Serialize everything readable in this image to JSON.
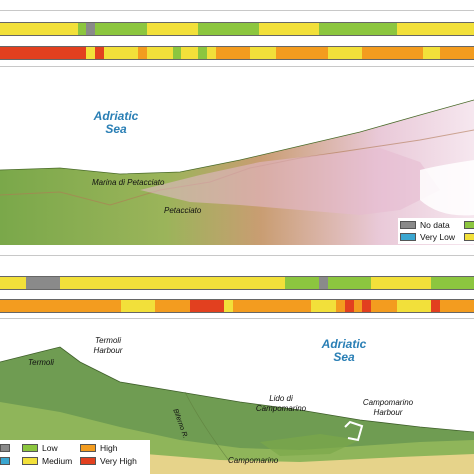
{
  "colors": {
    "no_data": "#8a8a8a",
    "very_low": "#3aa6d0",
    "low": "#8cc63f",
    "medium": "#f2e03a",
    "high": "#f39c1f",
    "very_high": "#e2401f"
  },
  "top_panel": {
    "sea_label": "Adriatic Sea",
    "places": [
      "Marina di Petacciato",
      "Petacciato"
    ],
    "legend": [
      "No data",
      "Very Low"
    ]
  },
  "bottom_panel": {
    "sea_label": "Adriatic Sea",
    "places": [
      "Termoli Harbour",
      "Termoli",
      "Lido di Campomarino",
      "Campomarino Harbour",
      "Campomarino",
      "Biferno R."
    ],
    "legend": [
      "Low",
      "High",
      "Medium",
      "Very High"
    ]
  },
  "bars": {
    "top_row1": [
      "medium",
      "medium",
      "medium",
      "medium",
      "medium",
      "medium",
      "medium",
      "medium",
      "medium",
      "low",
      "no_data",
      "low",
      "low",
      "low",
      "low",
      "low",
      "low",
      "medium",
      "medium",
      "medium",
      "medium",
      "medium",
      "medium",
      "low",
      "low",
      "low",
      "low",
      "low",
      "low",
      "low",
      "medium",
      "medium",
      "medium",
      "medium",
      "medium",
      "medium",
      "medium",
      "low",
      "low",
      "low",
      "low",
      "low",
      "low",
      "low",
      "low",
      "low",
      "medium",
      "medium",
      "medium",
      "medium",
      "medium",
      "medium",
      "medium",
      "medium",
      "medium"
    ],
    "top_row2": [
      "very_high",
      "very_high",
      "very_high",
      "very_high",
      "very_high",
      "very_high",
      "very_high",
      "very_high",
      "very_high",
      "very_high",
      "medium",
      "very_high",
      "medium",
      "medium",
      "medium",
      "medium",
      "high",
      "medium",
      "medium",
      "medium",
      "low",
      "medium",
      "medium",
      "low",
      "medium",
      "high",
      "high",
      "high",
      "high",
      "medium",
      "medium",
      "medium",
      "high",
      "high",
      "high",
      "high",
      "high",
      "high",
      "medium",
      "medium",
      "medium",
      "medium",
      "high",
      "high",
      "high",
      "high",
      "high",
      "high",
      "high",
      "medium",
      "medium",
      "high",
      "high",
      "high",
      "high"
    ],
    "bottom_row1": [
      "medium",
      "medium",
      "medium",
      "no_data",
      "no_data",
      "no_data",
      "no_data",
      "medium",
      "medium",
      "medium",
      "medium",
      "medium",
      "medium",
      "medium",
      "medium",
      "medium",
      "medium",
      "medium",
      "medium",
      "medium",
      "medium",
      "medium",
      "medium",
      "medium",
      "medium",
      "medium",
      "medium",
      "medium",
      "medium",
      "medium",
      "medium",
      "medium",
      "medium",
      "low",
      "low",
      "low",
      "low",
      "no_data",
      "low",
      "low",
      "low",
      "low",
      "low",
      "medium",
      "medium",
      "medium",
      "medium",
      "medium",
      "medium",
      "medium",
      "low",
      "low",
      "low",
      "low",
      "low"
    ],
    "bottom_row2": [
      "high",
      "high",
      "high",
      "high",
      "high",
      "high",
      "high",
      "high",
      "high",
      "high",
      "high",
      "high",
      "high",
      "high",
      "medium",
      "medium",
      "medium",
      "medium",
      "high",
      "high",
      "high",
      "high",
      "very_high",
      "very_high",
      "very_high",
      "very_high",
      "medium",
      "high",
      "high",
      "high",
      "high",
      "high",
      "high",
      "high",
      "high",
      "high",
      "medium",
      "medium",
      "medium",
      "high",
      "very_high",
      "high",
      "very_high",
      "high",
      "high",
      "high",
      "medium",
      "medium",
      "medium",
      "medium",
      "very_high",
      "high",
      "high",
      "high",
      "high"
    ]
  }
}
